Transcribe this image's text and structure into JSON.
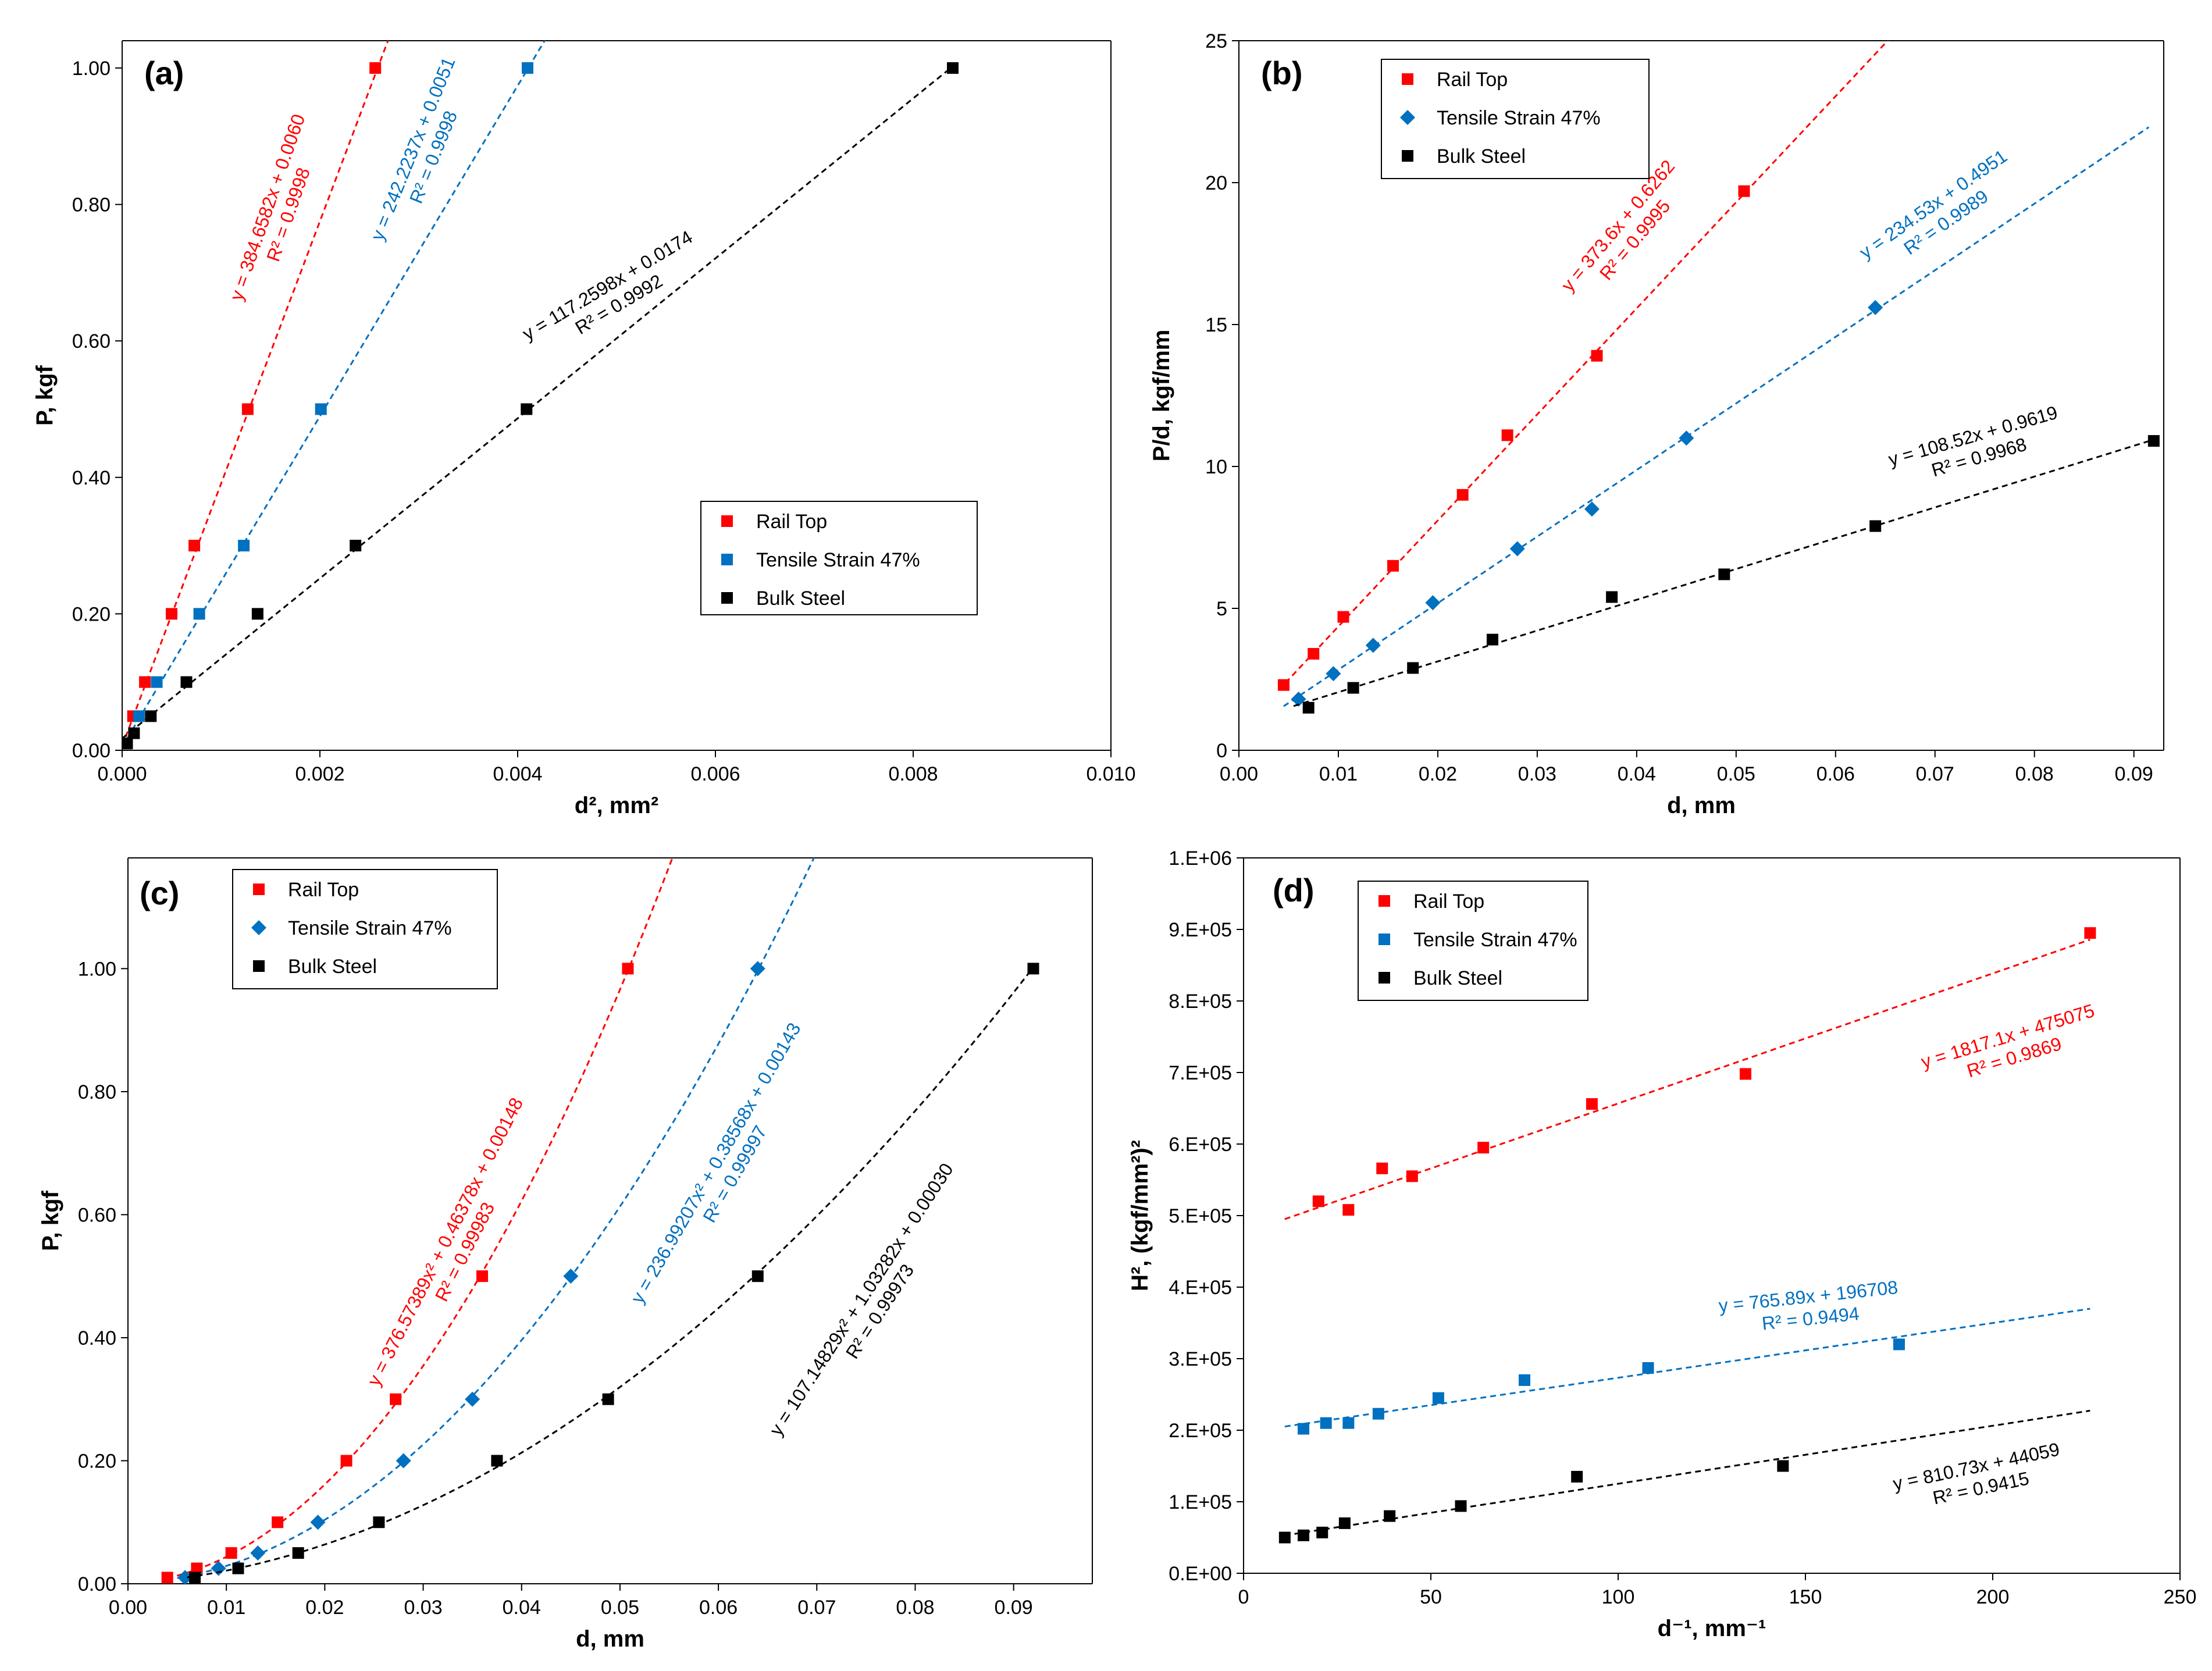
{
  "chart_data": [
    {
      "id": "a",
      "type": "scatter",
      "panel_label": "(a)",
      "xlabel": "d², mm²",
      "ylabel": "P, kgf",
      "xlim": [
        0,
        0.01
      ],
      "ylim": [
        0,
        1.04
      ],
      "xticks": [
        "0.000",
        "0.002",
        "0.004",
        "0.006",
        "0.008",
        "0.010"
      ],
      "yticks": [
        "0.00",
        "0.20",
        "0.40",
        "0.60",
        "0.80",
        "1.00"
      ],
      "legend_position": "middle-right",
      "series": [
        {
          "name": "Rail Top",
          "color": "#ff0000",
          "marker": "square",
          "x": [
            0.0,
            0.00011,
            0.00023,
            0.0005,
            0.00073,
            0.00127,
            0.00256
          ],
          "y": [
            0.01,
            0.05,
            0.1,
            0.2,
            0.3,
            0.5,
            1.0
          ],
          "fit": {
            "kind": "linear",
            "coef": [
              384.6582,
              0.006
            ],
            "x_range": [
              0.0,
              0.00277
            ]
          },
          "equation": "y = 384.6582x + 0.0060",
          "r2": "R² = 0.9998"
        },
        {
          "name": "Tensile Strain 47%",
          "color": "#0070c0",
          "marker": "square",
          "x": [
            3e-05,
            0.00017,
            0.00035,
            0.00078,
            0.00123,
            0.00201,
            0.0041
          ],
          "y": [
            0.01,
            0.05,
            0.1,
            0.2,
            0.3,
            0.5,
            1.0
          ],
          "fit": {
            "kind": "linear",
            "coef": [
              242.2237,
              0.0051
            ],
            "x_range": [
              0.0,
              0.00436
            ]
          },
          "equation": "y = 242.2237x + 0.0051",
          "r2": "R² = 0.9998"
        },
        {
          "name": "Bulk Steel",
          "color": "#000000",
          "marker": "square",
          "x": [
            5e-05,
            0.00012,
            0.00029,
            0.00065,
            0.00137,
            0.00236,
            0.00409,
            0.0084
          ],
          "y": [
            0.01,
            0.025,
            0.05,
            0.1,
            0.2,
            0.3,
            0.5,
            1.0
          ],
          "fit": {
            "kind": "linear",
            "coef": [
              117.2598,
              0.0174
            ],
            "x_range": [
              0.0,
              0.0084
            ]
          },
          "equation": "y = 117.2598x + 0.0174",
          "r2": "R² = 0.9992"
        }
      ]
    },
    {
      "id": "b",
      "type": "scatter",
      "panel_label": "(b)",
      "xlabel": "d, mm",
      "ylabel": "P/d, kgf/mm",
      "xlim": [
        0,
        0.093
      ],
      "ylim": [
        0,
        25
      ],
      "xticks": [
        "0.00",
        "0.01",
        "0.02",
        "0.03",
        "0.04",
        "0.05",
        "0.06",
        "0.07",
        "0.08",
        "0.09"
      ],
      "yticks": [
        "0",
        "5",
        "10",
        "15",
        "20",
        "25"
      ],
      "legend_position": "top-left",
      "series": [
        {
          "name": "Rail Top",
          "color": "#ff0000",
          "marker": "square",
          "x": [
            0.0045,
            0.0075,
            0.0105,
            0.0155,
            0.0225,
            0.027,
            0.036,
            0.0508
          ],
          "y": [
            2.3,
            3.4,
            4.7,
            6.5,
            9.0,
            11.1,
            13.9,
            19.7
          ],
          "fit": {
            "kind": "linear",
            "coef": [
              373.6,
              0.6262
            ],
            "x_range": [
              0.004,
              0.0653
            ]
          },
          "equation": "y = 373.6x + 0.6262",
          "r2": "R² = 0.9995"
        },
        {
          "name": "Tensile Strain 47%",
          "color": "#0070c0",
          "marker": "diamond",
          "x": [
            0.006,
            0.0095,
            0.0135,
            0.0195,
            0.028,
            0.0355,
            0.045,
            0.064
          ],
          "y": [
            1.8,
            2.7,
            3.7,
            5.2,
            7.1,
            8.5,
            11.0,
            15.6
          ],
          "fit": {
            "kind": "linear",
            "coef": [
              234.53,
              0.4951
            ],
            "x_range": [
              0.0045,
              0.0915
            ]
          },
          "equation": "y = 234.53x + 0.4951",
          "r2": "R² = 0.9989"
        },
        {
          "name": "Bulk Steel",
          "color": "#000000",
          "marker": "square",
          "x": [
            0.007,
            0.0115,
            0.0175,
            0.0255,
            0.0375,
            0.0488,
            0.064,
            0.092
          ],
          "y": [
            1.5,
            2.2,
            2.9,
            3.9,
            5.4,
            6.2,
            7.9,
            10.9
          ],
          "fit": {
            "kind": "linear",
            "coef": [
              108.52,
              0.9619
            ],
            "x_range": [
              0.0055,
              0.0918
            ]
          },
          "equation": "y = 108.52x + 0.9619",
          "r2": "R² = 0.9968"
        }
      ]
    },
    {
      "id": "c",
      "type": "scatter",
      "panel_label": "(c)",
      "xlabel": "d, mm",
      "ylabel": "P, kgf",
      "xlim": [
        0,
        0.098
      ],
      "ylim": [
        0,
        1.18
      ],
      "xticks": [
        "0.00",
        "0.01",
        "0.02",
        "0.03",
        "0.04",
        "0.05",
        "0.06",
        "0.07",
        "0.08",
        "0.09"
      ],
      "yticks": [
        "0.00",
        "0.20",
        "0.40",
        "0.60",
        "0.80",
        "1.00"
      ],
      "legend_position": "top-left",
      "series": [
        {
          "name": "Rail Top",
          "color": "#ff0000",
          "marker": "square",
          "x": [
            0.004,
            0.007,
            0.0105,
            0.0152,
            0.0222,
            0.0272,
            0.036,
            0.0508
          ],
          "y": [
            0.01,
            0.025,
            0.05,
            0.1,
            0.2,
            0.3,
            0.5,
            1.0
          ],
          "fit": {
            "kind": "quadratic",
            "coef": [
              376.57389,
              0.46378,
              0.00148
            ],
            "x_range": [
              0.004,
              0.0556
            ]
          },
          "equation": "y = 376.57389x² + 0.46378x + 0.00148",
          "r2": "R² = 0.99983"
        },
        {
          "name": "Tensile Strain 47%",
          "color": "#0070c0",
          "marker": "diamond",
          "x": [
            0.0058,
            0.0092,
            0.0132,
            0.0193,
            0.028,
            0.035,
            0.045,
            0.064
          ],
          "y": [
            0.01,
            0.025,
            0.05,
            0.1,
            0.2,
            0.3,
            0.5,
            1.0
          ],
          "fit": {
            "kind": "quadratic",
            "coef": [
              236.99207,
              0.38568,
              0.00143
            ],
            "x_range": [
              0.005,
              0.0705
            ]
          },
          "equation": "y = 236.99207x² + 0.38568x + 0.00143",
          "r2": "R² = 0.99997"
        },
        {
          "name": "Bulk Steel",
          "color": "#000000",
          "marker": "square",
          "x": [
            0.0068,
            0.0112,
            0.0173,
            0.0255,
            0.0375,
            0.0488,
            0.064,
            0.092
          ],
          "y": [
            0.01,
            0.025,
            0.05,
            0.1,
            0.2,
            0.3,
            0.5,
            1.0
          ],
          "fit": {
            "kind": "quadratic",
            "coef": [
              107.14829,
              1.03282,
              0.0003
            ],
            "x_range": [
              0.006,
              0.0915
            ]
          },
          "equation": "y = 107.14829x² + 1.03282x + 0.00030",
          "r2": "R² = 0.99973"
        }
      ]
    },
    {
      "id": "d",
      "type": "scatter",
      "panel_label": "(d)",
      "xlabel": "d⁻¹, mm⁻¹",
      "ylabel": "H², (kgf/mm²)²",
      "xlim": [
        0,
        250
      ],
      "ylim": [
        0,
        1000000
      ],
      "xticks": [
        "0",
        "50",
        "100",
        "150",
        "200",
        "250"
      ],
      "yticks": [
        "0.E+00",
        "1.E+05",
        "2.E+05",
        "3.E+05",
        "4.E+05",
        "5.E+05",
        "6.E+05",
        "7.E+05",
        "8.E+05",
        "9.E+05",
        "1.E+06"
      ],
      "legend_position": "top-left",
      "series": [
        {
          "name": "Rail Top",
          "color": "#ff0000",
          "marker": "square",
          "x": [
            20,
            28,
            37,
            45,
            64,
            93,
            134,
            226
          ],
          "y": [
            520000,
            508000,
            566000,
            555000,
            595000,
            656000,
            698000,
            895000
          ],
          "fit": {
            "kind": "linear",
            "coef": [
              1817.1,
              475075
            ],
            "x_range": [
              11,
              226
            ]
          },
          "equation": "y = 1817.1x + 475075",
          "r2": "R² = 0.9869"
        },
        {
          "name": "Tensile Strain 47%",
          "color": "#0070c0",
          "marker": "square",
          "x": [
            16,
            22,
            28,
            36,
            52,
            75,
            108,
            175
          ],
          "y": [
            202000,
            210000,
            210000,
            223000,
            245000,
            270000,
            287000,
            320000
          ],
          "fit": {
            "kind": "linear",
            "coef": [
              765.89,
              196708
            ],
            "x_range": [
              11,
              226
            ]
          },
          "equation": "y = 765.89x + 196708",
          "r2": "R² = 0.9494"
        },
        {
          "name": "Bulk Steel",
          "color": "#000000",
          "marker": "square",
          "x": [
            11,
            16,
            21,
            27,
            39,
            58,
            89,
            144
          ],
          "y": [
            50000,
            53000,
            57000,
            70000,
            80000,
            94000,
            135000,
            150000
          ],
          "fit": {
            "kind": "linear",
            "coef": [
              810.73,
              44059
            ],
            "x_range": [
              11,
              226
            ]
          },
          "equation": "y = 810.73x + 44059",
          "r2": "R² = 0.9415"
        }
      ]
    }
  ]
}
